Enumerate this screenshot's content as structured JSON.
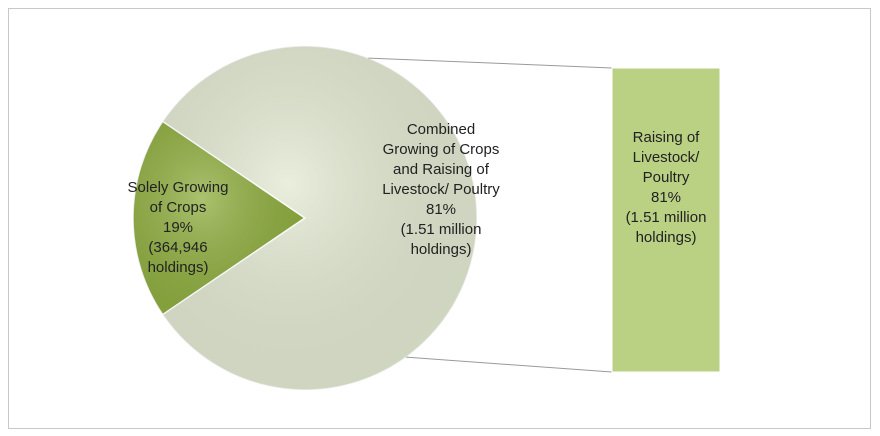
{
  "chart_data": {
    "type": "pie",
    "categories": [
      "Solely Growing of Crops",
      "Combined Growing of Crops and Raising of Livestock/ Poultry"
    ],
    "values": [
      19,
      81
    ],
    "value_labels": [
      "19%",
      "81%"
    ],
    "details": [
      "(364,946 holdings)",
      "(1.51 million holdings)"
    ],
    "colors": [
      "#8fae3e",
      "#e3ead2"
    ],
    "breakout": {
      "name": "Raising of Livestock/ Poultry",
      "value": 81,
      "value_label": "81%",
      "detail": "(1.51 million holdings)",
      "color": "#bad184"
    }
  }
}
